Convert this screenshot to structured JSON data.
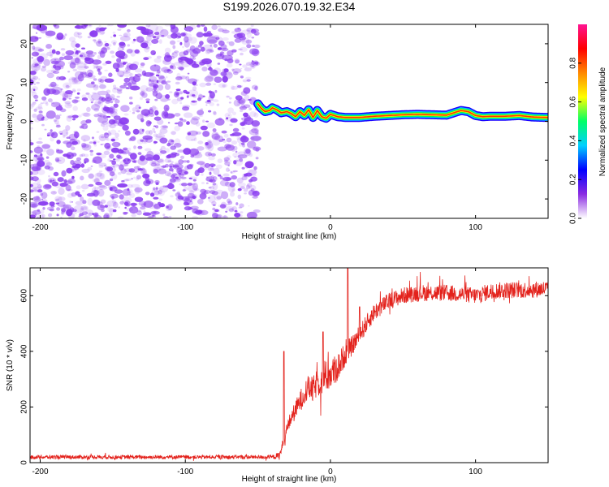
{
  "title": "S199.2026.070.19.32.E34",
  "colors": {
    "noise": "#8a3cf0",
    "line": "#e3221c",
    "axis": "#000000",
    "background": "#ffffff"
  },
  "colorbar_gradient": [
    "#ffffff",
    "#8a2be2",
    "#0000ff",
    "#00cfff",
    "#00ff66",
    "#ffff00",
    "#ff8800",
    "#ff0000",
    "#ff1493"
  ],
  "chart_data": [
    {
      "type": "heatmap",
      "title": "S199.2026.070.19.32.E34",
      "xlabel": "Height of straight line (km)",
      "ylabel": "Frequency (Hz)",
      "xlim": [
        -207,
        150
      ],
      "ylim": [
        -25,
        25
      ],
      "xticks": [
        -200,
        -100,
        0,
        100
      ],
      "xtick_labels": [
        "-200",
        "-100",
        "0",
        "100"
      ],
      "yticks": [
        -20,
        -10,
        0,
        10,
        20
      ],
      "ytick_labels": [
        "-20",
        "-10",
        "0",
        "10",
        "20"
      ],
      "noise_region_x": [
        -207,
        -50
      ],
      "signal_track": {
        "x": [
          -50,
          -48,
          -45,
          -42,
          -40,
          -37,
          -34,
          -30,
          -27,
          -24,
          -21,
          -18,
          -15,
          -12,
          -9,
          -6,
          -3,
          0,
          5,
          10,
          20,
          30,
          40,
          50,
          60,
          70,
          80,
          90,
          95,
          100,
          105,
          110,
          120,
          130,
          140,
          150
        ],
        "freq": [
          4.5,
          3.5,
          2.5,
          2.8,
          3.5,
          3.0,
          2.2,
          2.5,
          2.0,
          1.2,
          2.5,
          1.5,
          3.0,
          1.0,
          2.8,
          1.2,
          0.8,
          1.8,
          1.2,
          1.0,
          1.0,
          1.3,
          1.5,
          1.7,
          1.8,
          1.7,
          1.6,
          2.8,
          2.5,
          1.5,
          1.2,
          1.3,
          1.3,
          1.5,
          1.1,
          1.0
        ]
      },
      "colorbar": {
        "label": "Normalized spectral amplitude",
        "range": [
          0.0,
          1.0
        ],
        "ticks": [
          0.0,
          0.2,
          0.4,
          0.6,
          0.8
        ],
        "tick_labels": [
          "0.0",
          "0.2",
          "0.4",
          "0.6",
          "0.8"
        ]
      }
    },
    {
      "type": "line",
      "xlabel": "Height of straight line (km)",
      "ylabel": "SNR (10 * v/v)",
      "xlim": [
        -207,
        150
      ],
      "ylim": [
        0,
        700
      ],
      "xticks": [
        -200,
        -100,
        0,
        100
      ],
      "xtick_labels": [
        "-200",
        "-100",
        "0",
        "100"
      ],
      "yticks": [
        0,
        200,
        400,
        600
      ],
      "ytick_labels": [
        "0",
        "200",
        "400",
        "600"
      ],
      "trend": {
        "x": [
          -207,
          -40,
          -35,
          -30,
          -28,
          -25,
          -22,
          -20,
          -18,
          -15,
          -12,
          -10,
          -8,
          -5,
          -3,
          0,
          3,
          6,
          10,
          15,
          20,
          25,
          30,
          40,
          50,
          60,
          80,
          100,
          110,
          120,
          130,
          150
        ],
        "y": [
          20,
          20,
          25,
          120,
          150,
          180,
          210,
          230,
          250,
          270,
          260,
          280,
          290,
          300,
          310,
          320,
          330,
          350,
          390,
          420,
          460,
          500,
          540,
          580,
          600,
          610,
          610,
          600,
          615,
          620,
          620,
          625
        ]
      },
      "noise_amplitude": {
        "x": [
          -207,
          -40,
          -35,
          -20,
          0,
          15,
          40,
          150
        ],
        "amp": [
          7,
          7,
          15,
          40,
          60,
          35,
          30,
          30
        ]
      },
      "peaks": [
        {
          "x": -32,
          "y": 400
        },
        {
          "x": -5,
          "y": 470
        },
        {
          "x": 12,
          "y": 700
        },
        {
          "x": 20,
          "y": 560
        }
      ]
    }
  ]
}
